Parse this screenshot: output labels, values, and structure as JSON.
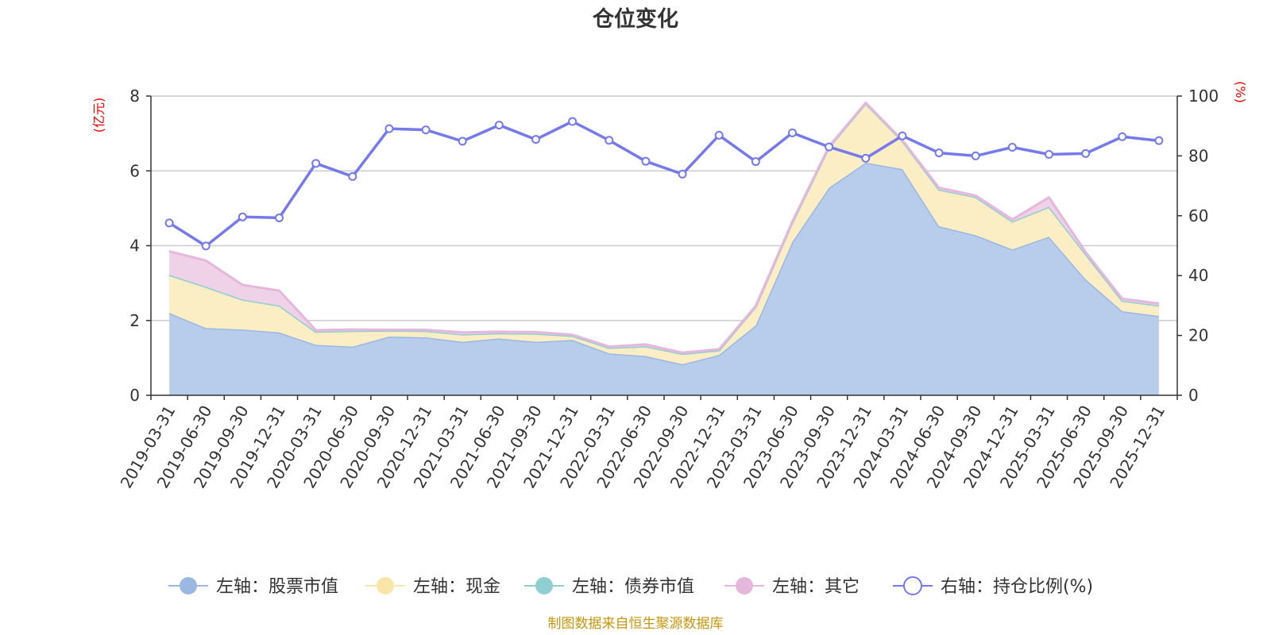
{
  "chart_data": {
    "type": "area",
    "title": "仓位变化",
    "source": "制图数据来自恒生聚源数据库",
    "left_axis": {
      "unit": "(亿元)",
      "ylim": [
        0,
        8
      ],
      "ticks": [
        "0",
        "2",
        "4",
        "6",
        "8"
      ]
    },
    "right_axis": {
      "unit": "(%)",
      "ylim": [
        0,
        100
      ],
      "ticks": [
        "0",
        "20",
        "40",
        "60",
        "80",
        "100"
      ]
    },
    "categories": [
      "2019-03-31",
      "2019-06-30",
      "2019-09-30",
      "2019-12-31",
      "2020-03-31",
      "2020-06-30",
      "2020-09-30",
      "2020-12-31",
      "2021-03-31",
      "2021-06-30",
      "2021-09-30",
      "2021-12-31",
      "2022-03-31",
      "2022-06-30",
      "2022-09-30",
      "2022-12-31",
      "2023-03-31",
      "2023-06-30",
      "2023-09-30",
      "2023-12-31",
      "2024-03-31",
      "2024-06-30",
      "2024-09-30",
      "2024-12-31",
      "2025-03-31",
      "2025-06-30",
      "2025-09-30",
      "2025-12-31"
    ],
    "series": [
      {
        "name": "左轴：股票市值",
        "axis": "left",
        "stacked": true,
        "color": "#9ab8e2",
        "fill": "#b8cceb",
        "values": [
          2.2,
          1.8,
          1.76,
          1.68,
          1.35,
          1.3,
          1.57,
          1.55,
          1.43,
          1.52,
          1.43,
          1.48,
          1.12,
          1.05,
          0.83,
          1.08,
          1.87,
          4.1,
          5.55,
          6.22,
          6.05,
          4.52,
          4.28,
          3.9,
          4.24,
          3.1,
          2.25,
          2.12
        ]
      },
      {
        "name": "左轴：现金",
        "axis": "left",
        "stacked": true,
        "color": "#f9e6a7",
        "fill": "#fbeec4",
        "values": [
          1.02,
          1.1,
          0.8,
          0.72,
          0.35,
          0.42,
          0.16,
          0.17,
          0.2,
          0.14,
          0.22,
          0.11,
          0.15,
          0.26,
          0.28,
          0.12,
          0.5,
          0.52,
          1.08,
          1.58,
          0.75,
          0.98,
          1.02,
          0.75,
          0.8,
          0.68,
          0.28,
          0.28
        ]
      },
      {
        "name": "左轴：债券市值",
        "axis": "left",
        "stacked": true,
        "color": "#8fcfd2",
        "fill": "#a8dde0",
        "values": [
          0,
          0,
          0,
          0,
          0,
          0,
          0,
          0,
          0,
          0,
          0,
          0,
          0,
          0,
          0,
          0,
          0,
          0,
          0,
          0,
          0,
          0,
          0,
          0,
          0,
          0,
          0,
          0
        ]
      },
      {
        "name": "左轴：其它",
        "axis": "left",
        "stacked": true,
        "color": "#e6b7dc",
        "fill": "#efd1e8",
        "values": [
          0.63,
          0.7,
          0.39,
          0.4,
          0.04,
          0.04,
          0.02,
          0.03,
          0.05,
          0.04,
          0.04,
          0.03,
          0.03,
          0.05,
          0.03,
          0.03,
          0.02,
          0.03,
          0.02,
          0.02,
          0.02,
          0.05,
          0.04,
          0.05,
          0.25,
          0.05,
          0.05,
          0.05
        ]
      },
      {
        "name": "右轴：持仓比例(%)",
        "axis": "right",
        "type": "line",
        "color": "#7579eb",
        "values": [
          57.6,
          49.9,
          59.6,
          59.3,
          77.5,
          73.1,
          89.1,
          88.7,
          84.9,
          90.3,
          85.5,
          91.5,
          85.2,
          78.2,
          73.9,
          86.9,
          78.1,
          87.7,
          83.0,
          79.2,
          86.7,
          81.0,
          80.0,
          82.9,
          80.5,
          80.8,
          86.4,
          85.1
        ]
      }
    ],
    "grid": true,
    "legend_position": "bottom"
  }
}
